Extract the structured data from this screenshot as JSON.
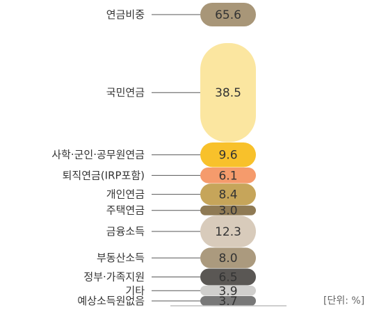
{
  "chart_data": {
    "type": "bar",
    "title": "",
    "xlabel": "",
    "ylabel": "",
    "unit_note": "[단위: %]",
    "total": {
      "label": "연금비중",
      "value": 65.6,
      "display": "65.6",
      "color": "#a89678"
    },
    "categories": [
      "국민연금",
      "사학·군인·공무원연금",
      "퇴직연금(IRP포함)",
      "개인연금",
      "주택연금",
      "금융소득",
      "부동산소득",
      "정부·가족지원",
      "기타",
      "예상소득원없음"
    ],
    "values": [
      38.5,
      9.6,
      6.1,
      8.4,
      3.0,
      12.3,
      8.0,
      6.5,
      3.9,
      3.7
    ],
    "display_values": [
      "38.5",
      "9.6",
      "6.1",
      "8.4",
      "3.0",
      "12.3",
      "8.0",
      "6.5",
      "3.9",
      "3.7"
    ],
    "colors": [
      "#fbe6a0",
      "#f8c12b",
      "#f59b6c",
      "#c6a55a",
      "#8f7a54",
      "#d8cbbb",
      "#ab9a7e",
      "#5a5754",
      "#d0cfcd",
      "#787878"
    ],
    "value_text_colors": [
      "#333333",
      "#333333",
      "#ffffff",
      "#ffffff",
      "#ffffff",
      "#333333",
      "#333333",
      "#ffffff",
      "#333333",
      "#333333"
    ]
  }
}
